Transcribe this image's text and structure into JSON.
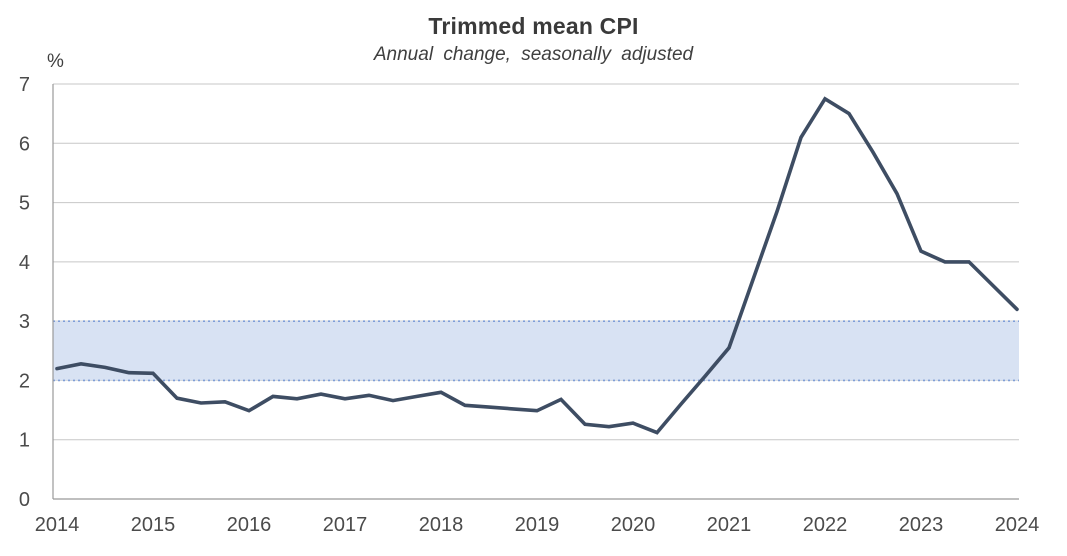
{
  "chart_data": {
    "type": "line",
    "title": "Trimmed mean CPI",
    "subtitle": "Annual change, seasonally adjusted",
    "unit_label": "%",
    "ylim": [
      0,
      7
    ],
    "yticks": [
      0,
      1,
      2,
      3,
      4,
      5,
      6,
      7
    ],
    "xticks": [
      2014,
      2015,
      2016,
      2017,
      2018,
      2019,
      2020,
      2021,
      2022,
      2023,
      2024
    ],
    "grid": true,
    "legend": "none",
    "target_band": {
      "from": 2,
      "to": 3,
      "style": "shaded with dotted borders"
    },
    "series": [
      {
        "name": "Trimmed mean CPI annual change (seasonally adjusted)",
        "frequency": "quarterly",
        "x_start": 2014,
        "x_step": 0.25,
        "values": [
          2.2,
          2.28,
          2.22,
          2.13,
          2.12,
          1.7,
          1.62,
          1.64,
          1.49,
          1.73,
          1.69,
          1.77,
          1.69,
          1.75,
          1.66,
          1.73,
          1.8,
          1.58,
          1.55,
          1.52,
          1.49,
          1.68,
          1.26,
          1.22,
          1.28,
          1.12,
          1.6,
          2.07,
          2.55,
          3.7,
          4.85,
          6.1,
          6.75,
          6.5,
          5.85,
          5.15,
          4.18,
          4.0,
          4.0,
          3.6,
          3.2
        ]
      }
    ],
    "colors": {
      "line": "#3E4D63",
      "band_fill": "#D8E2F3",
      "band_border": "#7E9DD7",
      "gridline": "#C7C7C7",
      "axis": "#999999",
      "tick_text": "#4b4b4b",
      "title_text": "#3a3a3a"
    }
  }
}
